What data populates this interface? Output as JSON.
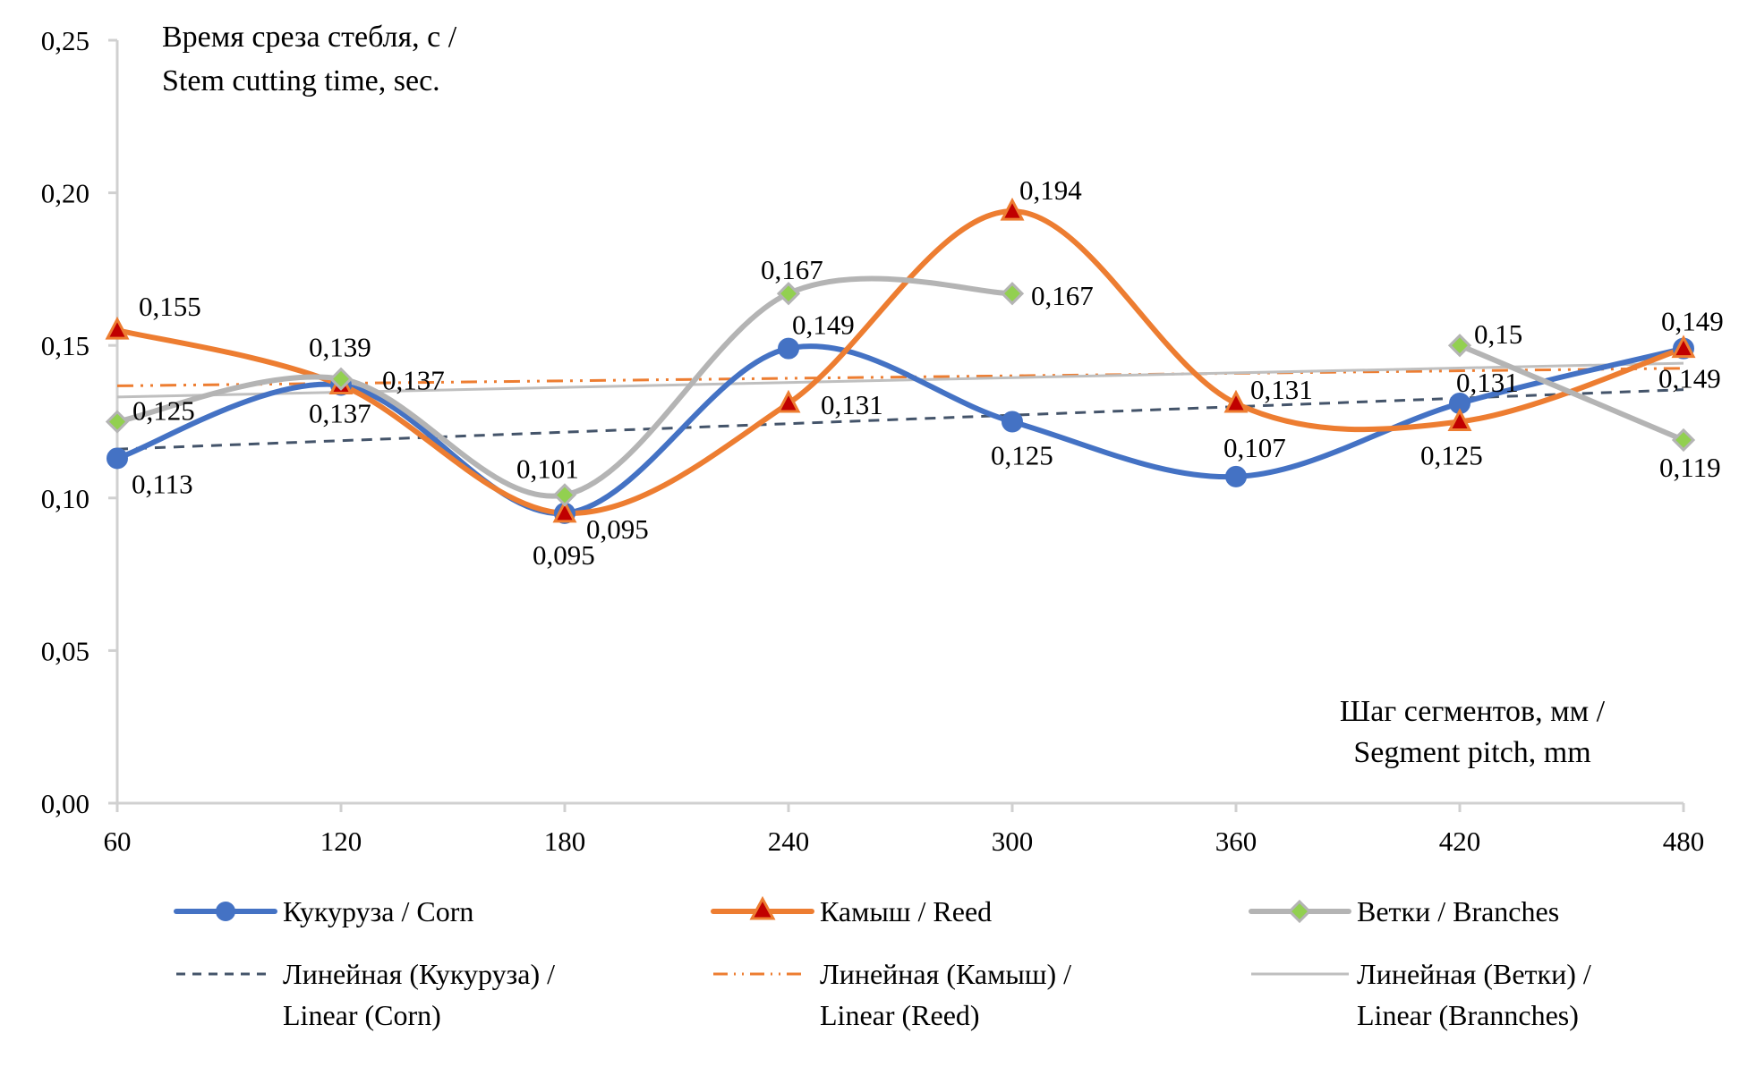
{
  "chart_data": {
    "type": "line",
    "title": "",
    "ylabel": "Время среза стебля, с / Stem cutting time, sec.",
    "ylabel_lines": [
      "Время среза стебля, с /",
      "Stem cutting time, sec."
    ],
    "xlabel": "Шаг сегментов, мм / Segment pitch, mm",
    "xlabel_lines": [
      "Шаг сегментов, мм /",
      "Segment pitch, mm"
    ],
    "x": [
      60,
      120,
      180,
      240,
      300,
      360,
      420,
      480
    ],
    "x_tick_labels": [
      "60",
      "120",
      "180",
      "240",
      "300",
      "360",
      "420",
      "480"
    ],
    "ylim": [
      0,
      0.25
    ],
    "y_ticks": [
      0,
      0.05,
      0.1,
      0.15,
      0.2,
      0.25
    ],
    "y_tick_labels": [
      "0,00",
      "0,05",
      "0,10",
      "0,15",
      "0,20",
      "0,25"
    ],
    "grid": false,
    "smoothed": true,
    "legend_position": "bottom",
    "series": [
      {
        "name": "Кукуруза / Corn",
        "values": [
          0.113,
          0.137,
          0.095,
          0.149,
          0.125,
          0.107,
          0.131,
          0.149
        ],
        "labels": [
          "0,113",
          "0,137",
          "0,095",
          "0,149",
          "0,125",
          "0,107",
          "0,131",
          "0,149"
        ],
        "color": "#4472C4",
        "marker": "circle",
        "marker_fill": "#4472C4",
        "marker_stroke": "#4472C4"
      },
      {
        "name": "Камыш / Reed",
        "values": [
          0.155,
          0.137,
          0.095,
          0.131,
          0.194,
          0.131,
          0.125,
          0.149
        ],
        "labels": [
          "0,155",
          "0,137",
          "0,095",
          "0,131",
          "0,194",
          "0,131",
          "0,125",
          "0,149"
        ],
        "color": "#ED7D31",
        "marker": "triangle",
        "marker_fill": "#C00000",
        "marker_stroke": "#ED7D31"
      },
      {
        "name": "Ветки / Branches",
        "values": [
          0.125,
          0.139,
          0.101,
          0.167,
          0.167,
          null,
          0.15,
          0.119
        ],
        "labels": [
          "0,125",
          "0,139",
          "0,101",
          "0,167",
          "0,167",
          "",
          "0,15",
          "0,119"
        ],
        "color": "#B4B4B4",
        "marker": "diamond",
        "marker_fill": "#92D050",
        "marker_stroke": "#B4B4B4"
      }
    ],
    "trendlines": [
      {
        "name_lines": [
          "Линейная (Кукуруза) /",
          "Linear (Corn)"
        ],
        "of_series": 0,
        "type": "linear",
        "color": "#44546A",
        "dash": "dashed"
      },
      {
        "name_lines": [
          "Линейная (Камыш) /",
          "Linear (Reed)"
        ],
        "of_series": 1,
        "type": "linear",
        "color": "#ED7D31",
        "dash": "dash-dot-dot"
      },
      {
        "name_lines": [
          "Линейная (Ветки) /",
          "Linear (Brannches)"
        ],
        "of_series": 2,
        "type": "linear",
        "color": "#BFBFBF",
        "dash": "solid"
      }
    ],
    "legend": {
      "row1": [
        "Кукуруза / Corn",
        "Камыш / Reed",
        "Ветки / Branches"
      ],
      "row2": [
        [
          "Линейная (Кукуруза) /",
          "Linear (Corn)"
        ],
        [
          "Линейная (Камыш) /",
          "Linear (Reed)"
        ],
        [
          "Линейная (Ветки) /",
          "Linear (Brannches)"
        ]
      ]
    }
  }
}
